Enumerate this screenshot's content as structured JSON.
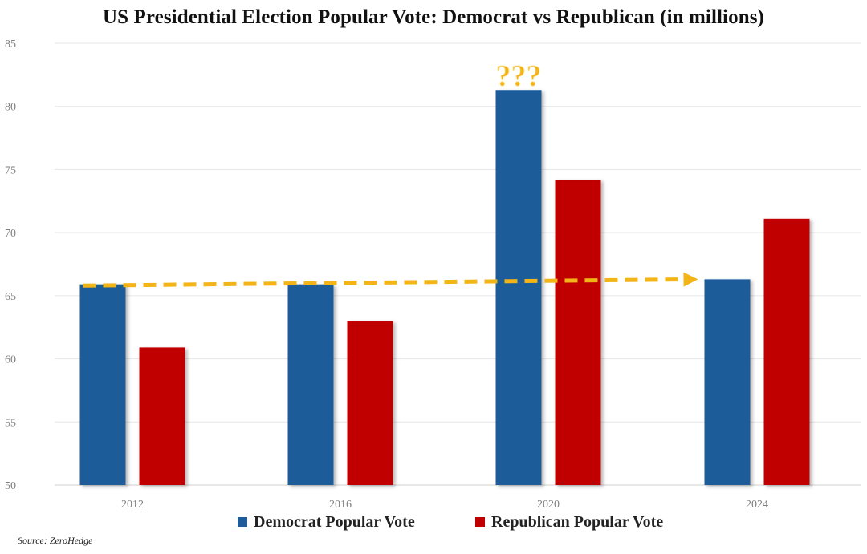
{
  "colors": {
    "democrat": "#1F5C99",
    "republican": "#C00000",
    "arrow": "#F2B417",
    "grid": "#E6E6E6",
    "tick_text": "#7F7F7F",
    "legend_text": "#222222"
  },
  "source": "Source: ZeroHedge",
  "chart_data": {
    "type": "bar",
    "title": "US Presidential Election Popular Vote: Democrat vs Republican (in millions)",
    "xlabel": "",
    "ylabel": "",
    "categories": [
      "2012",
      "2016",
      "2020",
      "2024"
    ],
    "series": [
      {
        "name": "Democrat Popular Vote",
        "color": "#1F5C99",
        "values": [
          65.9,
          65.9,
          81.3,
          66.3
        ]
      },
      {
        "name": "Republican Popular Vote",
        "color": "#C00000",
        "values": [
          60.9,
          63.0,
          74.2,
          71.1
        ]
      }
    ],
    "ylim": [
      50,
      85
    ],
    "yticks": [
      50,
      55,
      60,
      65,
      70,
      75,
      80,
      85
    ],
    "grid": true,
    "legend_position": "bottom",
    "annotations": [
      {
        "type": "text",
        "text": "???",
        "category": "2020",
        "series": "Democrat Popular Vote",
        "color": "#F2B417"
      },
      {
        "type": "dashed-arrow",
        "from_category": "2012",
        "to_category": "2024",
        "from_value": 65.8,
        "to_value": 66.3,
        "color": "#F2B417"
      }
    ]
  }
}
